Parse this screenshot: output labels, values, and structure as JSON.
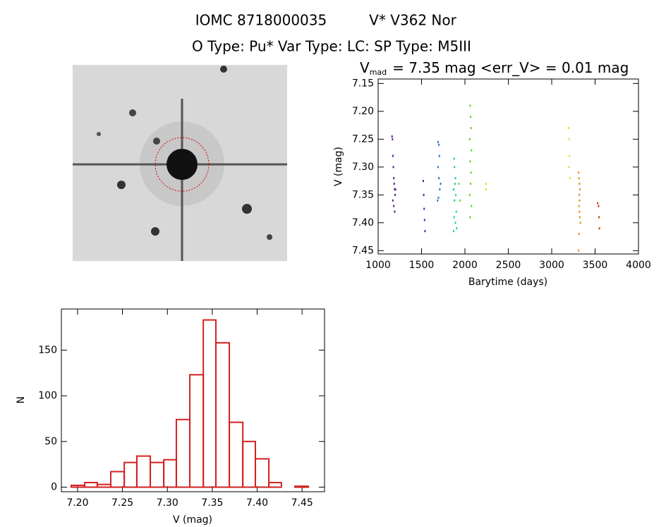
{
  "header": {
    "title": "IOMC 8718000035",
    "name": "V* V362 Nor",
    "subtitle": "O Type: Pu*  Var Type: LC:  SP Type: M5III"
  },
  "chart_data": [
    {
      "type": "scatter",
      "title": "V",
      "title_sub": "mad",
      "title_rest": "= 7.35 mag <err_V> = 0.01 mag",
      "x_label": "Barytime (days)",
      "y_label": "V (mag)",
      "xlim": [
        1000,
        4000
      ],
      "xticks": [
        1000,
        1500,
        2000,
        2500,
        3000,
        3500,
        4000
      ],
      "ylim": [
        7.456,
        7.142
      ],
      "yticks": [
        7.15,
        {
          "value": 7.2,
          "label": "7.20"
        },
        7.25,
        {
          "value": 7.3,
          "label": "7.30"
        },
        7.35,
        {
          "value": 7.4,
          "label": "7.40"
        },
        7.45
      ],
      "series": [
        {
          "color": "#5a1a8c",
          "x": [
            1160,
            1165,
            1170,
            1175,
            1180,
            1185,
            1190,
            1195,
            1170,
            1180,
            1190,
            1200
          ],
          "values": [
            7.245,
            7.25,
            7.28,
            7.3,
            7.32,
            7.33,
            7.34,
            7.35,
            7.36,
            7.37,
            7.38,
            7.34
          ]
        },
        {
          "color": "#1a3a9c",
          "x": [
            1520,
            1525,
            1530,
            1535,
            1540
          ],
          "values": [
            7.325,
            7.35,
            7.375,
            7.395,
            7.415
          ]
        },
        {
          "color": "#2a6fc8",
          "x": [
            1690,
            1700,
            1705,
            1690,
            1700,
            1710,
            1695,
            1685,
            1720
          ],
          "values": [
            7.255,
            7.26,
            7.28,
            7.3,
            7.32,
            7.34,
            7.355,
            7.36,
            7.33
          ]
        },
        {
          "color": "#1ac8b0",
          "x": [
            1875,
            1880,
            1890,
            1885,
            1870,
            1895,
            1880,
            1900,
            1875,
            1890,
            1905,
            1870
          ],
          "values": [
            7.285,
            7.3,
            7.32,
            7.33,
            7.34,
            7.35,
            7.36,
            7.38,
            7.39,
            7.4,
            7.41,
            7.415
          ]
        },
        {
          "color": "#5ad820",
          "x": [
            2060,
            2065,
            2070,
            2055,
            2075,
            2060,
            2070,
            2065,
            2055,
            2075,
            2060,
            1930,
            1945
          ],
          "values": [
            7.19,
            7.21,
            7.23,
            7.25,
            7.27,
            7.29,
            7.31,
            7.33,
            7.35,
            7.37,
            7.39,
            7.33,
            7.36
          ]
        },
        {
          "color": "#c0e830",
          "x": [
            2240,
            2245
          ],
          "values": [
            7.33,
            7.34
          ]
        },
        {
          "color": "#e8e020",
          "x": [
            3195,
            3200,
            3205,
            3200,
            3210
          ],
          "values": [
            7.23,
            7.25,
            7.28,
            7.3,
            7.32
          ]
        },
        {
          "color": "#e89010",
          "x": [
            3310,
            3315,
            3320,
            3325,
            3318,
            3322,
            3316,
            3320,
            3325,
            3330,
            3315,
            3310
          ],
          "values": [
            7.31,
            7.32,
            7.33,
            7.34,
            7.35,
            7.36,
            7.37,
            7.38,
            7.39,
            7.4,
            7.42,
            7.45
          ]
        },
        {
          "color": "#c04010",
          "x": [
            3530,
            3540,
            3545,
            3550
          ],
          "values": [
            7.365,
            7.37,
            7.39,
            7.41
          ]
        }
      ]
    },
    {
      "type": "histogram",
      "x_label": "V (mag)",
      "y_label": "N",
      "color": "#d42020",
      "bins": [
        7.193,
        7.208,
        7.222,
        7.237,
        7.252,
        7.266,
        7.281,
        7.296,
        7.31,
        7.325,
        7.34,
        7.354,
        7.369,
        7.384,
        7.398,
        7.413,
        7.427,
        7.442,
        7.457
      ],
      "values": [
        2,
        5,
        3,
        17,
        27,
        34,
        27,
        30,
        74,
        123,
        183,
        158,
        71,
        50,
        31,
        5,
        0,
        1
      ],
      "xlim": [
        7.182,
        7.475
      ],
      "xticks": [
        {
          "value": 7.2,
          "label": "7.20"
        },
        7.25,
        {
          "value": 7.3,
          "label": "7.30"
        },
        7.35,
        {
          "value": 7.4,
          "label": "7.40"
        },
        7.45
      ],
      "ylim": [
        -5,
        195
      ],
      "yticks": [
        0,
        50,
        100,
        150
      ]
    }
  ]
}
